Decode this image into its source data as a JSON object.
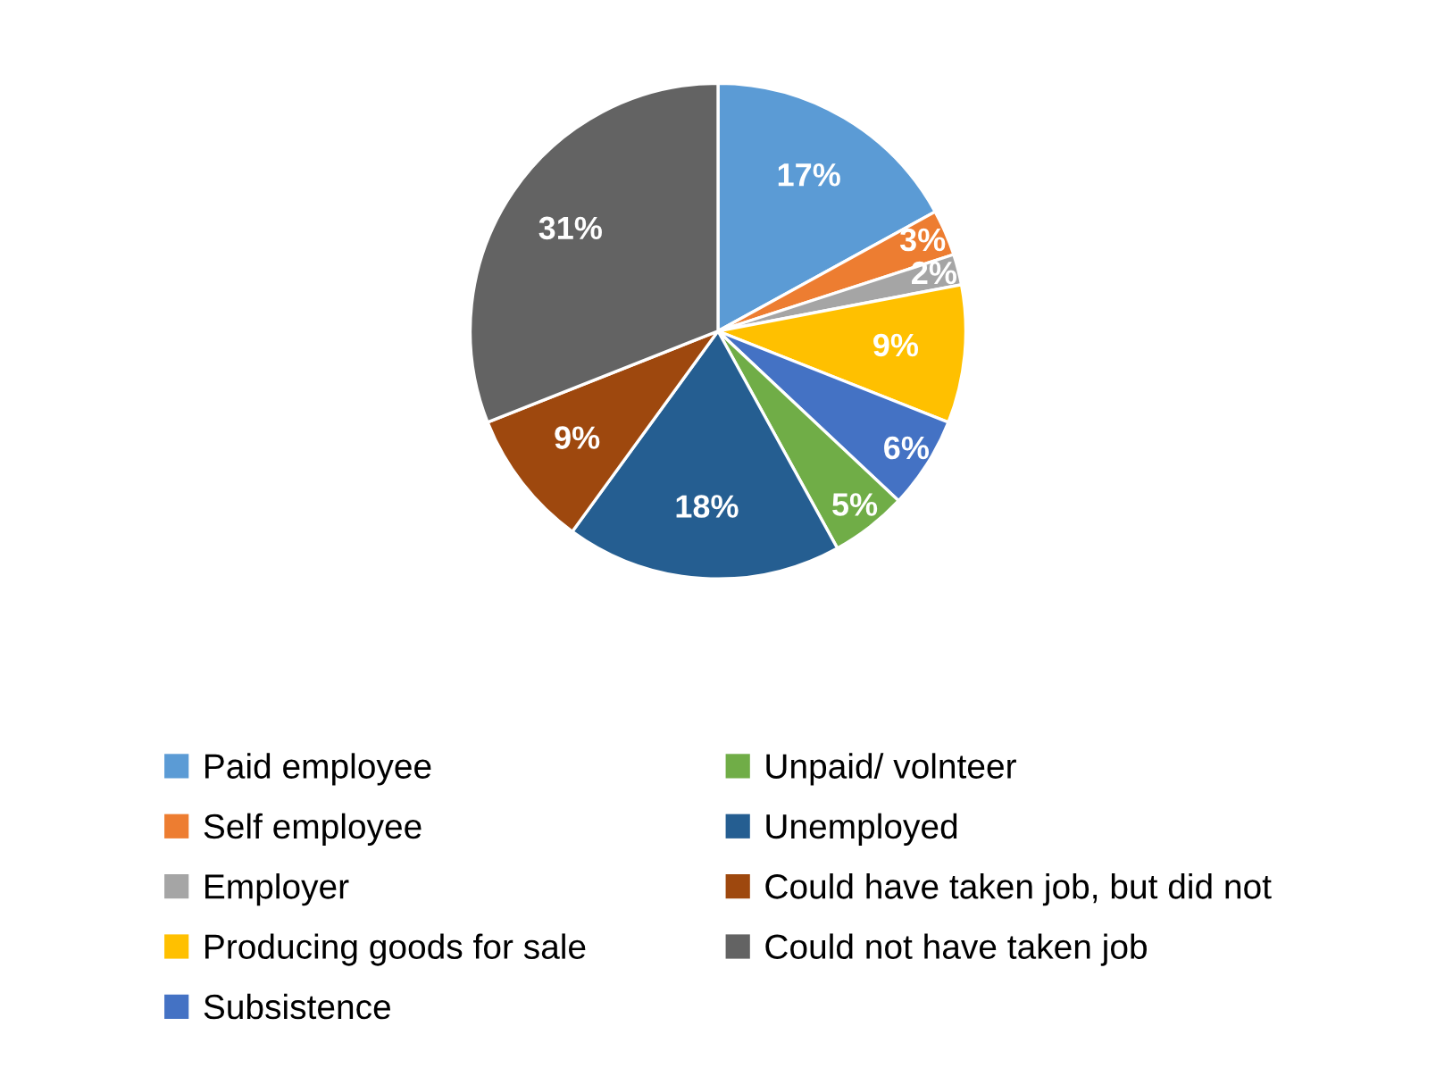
{
  "chart_data": {
    "type": "pie",
    "categories": [
      "Paid employee",
      "Self employee",
      "Employer",
      "Producing goods for sale",
      "Subsistence",
      "Unpaid/ volnteer",
      "Unemployed",
      "Could have taken job, but did not",
      "Could not have taken job"
    ],
    "values": [
      17,
      3,
      2,
      9,
      6,
      5,
      18,
      9,
      31
    ],
    "value_labels": [
      "17%",
      "3%",
      "2%",
      "9%",
      "6%",
      "5%",
      "18%",
      "9%",
      "31%"
    ],
    "colors": [
      "#5b9bd5",
      "#ed7d31",
      "#a5a5a5",
      "#ffc000",
      "#4472c4",
      "#70ad47",
      "#255e91",
      "#9e480e",
      "#636363"
    ],
    "legend": "bottom"
  }
}
